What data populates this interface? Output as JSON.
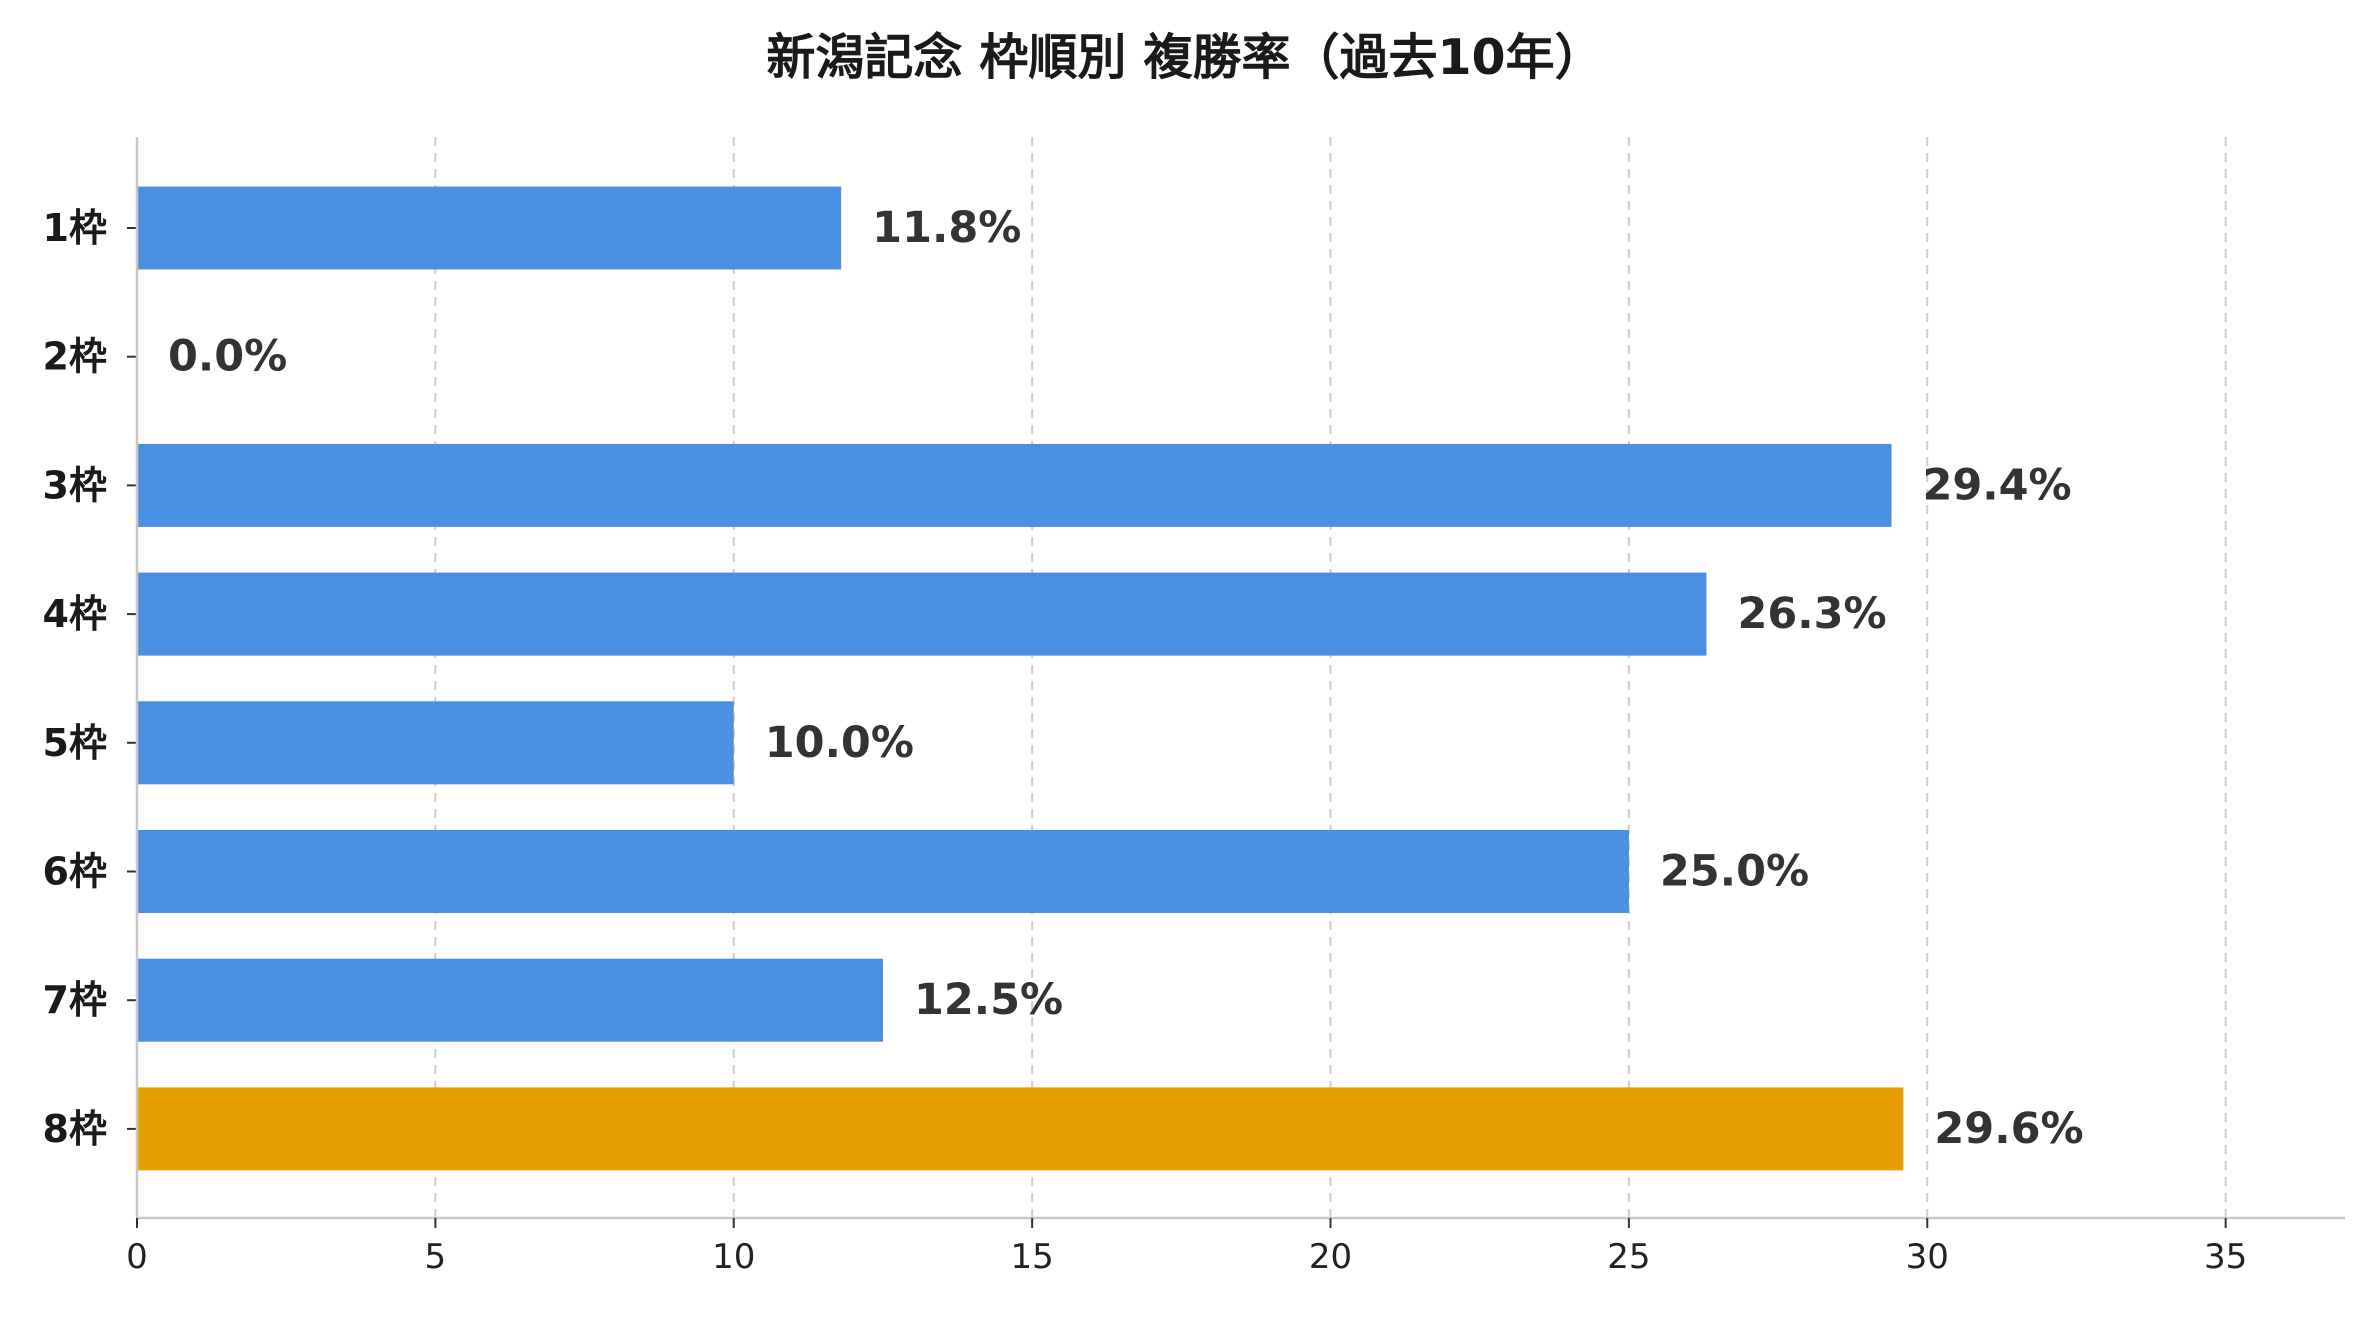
{
  "chart_data": {
    "type": "bar",
    "orientation": "horizontal",
    "title": "新潟記念 枠順別 複勝率（過去10年）",
    "xlabel": "",
    "ylabel": "",
    "categories": [
      "1枠",
      "2枠",
      "3枠",
      "4枠",
      "5枠",
      "6枠",
      "7枠",
      "8枠"
    ],
    "values": [
      11.8,
      0.0,
      29.4,
      26.3,
      10.0,
      25.0,
      12.5,
      29.6
    ],
    "value_labels": [
      "11.8%",
      "0.0%",
      "29.4%",
      "26.3%",
      "10.0%",
      "25.0%",
      "12.5%",
      "29.6%"
    ],
    "xlim": [
      0,
      37
    ],
    "xticks": [
      "0",
      "5",
      "10",
      "15",
      "20",
      "25",
      "30",
      "35"
    ],
    "xtick_values": [
      0,
      5,
      10,
      15,
      20,
      25,
      30,
      35
    ],
    "grid": "vertical dashed",
    "colors": {
      "default": "#4a90e2",
      "highlight": "#e5a000",
      "grid": "#cccccc",
      "axis": "#c8c8c8"
    },
    "highlight_index": 7
  }
}
